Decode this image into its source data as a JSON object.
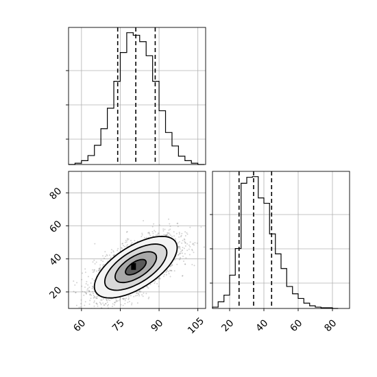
{
  "chart_data": {
    "type": "corner",
    "title": "",
    "grid": true,
    "params": [
      {
        "xlabel": "",
        "range": [
          55,
          108
        ],
        "ticks": [
          "60",
          "75",
          "90",
          "105"
        ],
        "quantile_lines": [
          74,
          81,
          88.5
        ],
        "histogram": {
          "bin_edges": [
            55,
            57.5,
            60,
            62.5,
            65,
            67.5,
            70,
            72.5,
            75,
            77.5,
            80,
            82.5,
            85,
            87.5,
            90,
            92.5,
            95,
            97.5,
            100,
            102.5,
            105,
            107.5
          ],
          "counts": [
            0,
            2,
            6,
            14,
            30,
            56,
            88,
            130,
            175,
            206,
            202,
            192,
            170,
            130,
            84,
            50,
            29,
            13,
            6,
            2,
            0
          ]
        }
      },
      {
        "xlabel": "",
        "range": [
          10,
          90
        ],
        "ticks": [
          "20",
          "40",
          "60",
          "80"
        ],
        "quantile_lines": [
          25.5,
          34,
          44.5
        ],
        "histogram": {
          "bin_edges": [
            10,
            13.3,
            16.7,
            20,
            23.3,
            26.7,
            30,
            33.3,
            36.7,
            40,
            43.3,
            46.7,
            50,
            53.3,
            56.7,
            60,
            63.3,
            66.7,
            70,
            73.3,
            76.7,
            80,
            83.3
          ],
          "counts": [
            2,
            10,
            20,
            50,
            90,
            188,
            197,
            198,
            166,
            158,
            112,
            82,
            60,
            33,
            22,
            15,
            8,
            4,
            2,
            1,
            1,
            0
          ]
        }
      }
    ],
    "joint": {
      "x_param": 0,
      "y_param": 1,
      "x_range": [
        55,
        108
      ],
      "y_range": [
        10,
        93
      ],
      "x_ticks": [
        "60",
        "75",
        "90",
        "105"
      ],
      "y_ticks": [
        "20",
        "40",
        "60",
        "80"
      ],
      "mean": [
        81,
        35
      ],
      "cov": [
        [
          64,
          47
        ],
        [
          47,
          87
        ]
      ],
      "n_samples": 3000,
      "contour_levels": [
        0.5,
        1.0,
        1.5,
        2.0
      ]
    }
  }
}
